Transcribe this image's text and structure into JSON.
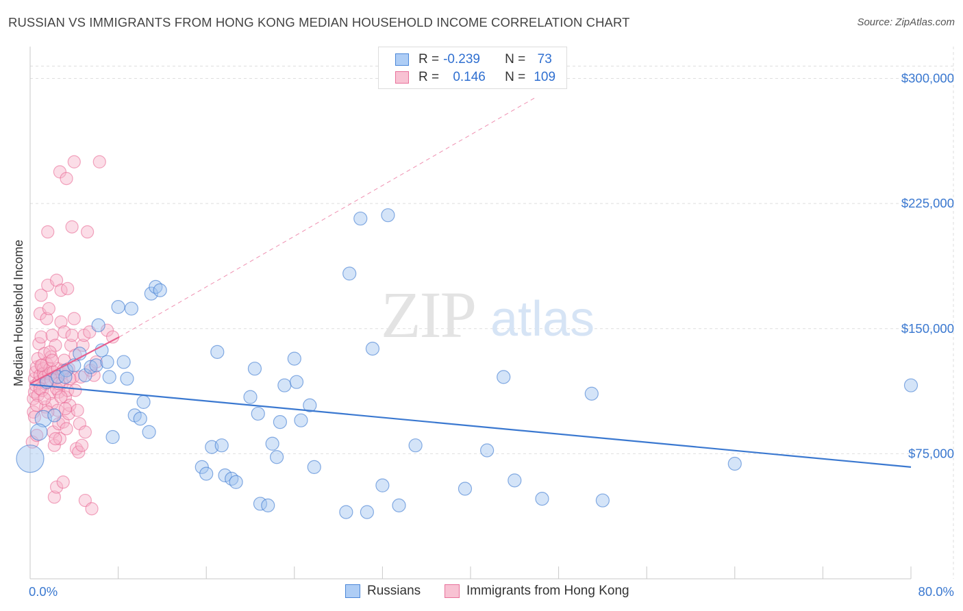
{
  "title": "RUSSIAN VS IMMIGRANTS FROM HONG KONG MEDIAN HOUSEHOLD INCOME CORRELATION CHART",
  "source": "Source: ZipAtlas.com",
  "watermark": {
    "zip": "ZIP",
    "atlas": "atlas"
  },
  "legend": {
    "rows": [
      {
        "r_label": "R =",
        "r_value": "-0.239",
        "n_label": "N =",
        "n_value": "73",
        "color": "#4a86d8",
        "fill": "#aecdf5"
      },
      {
        "r_label": "R =",
        "r_value": "0.146",
        "n_label": "N =",
        "n_value": "109",
        "color": "#e8709a",
        "fill": "#f8c2d3"
      }
    ]
  },
  "bottom_legend": [
    {
      "label": "Russians",
      "color": "#4a86d8",
      "fill": "#aecdf5"
    },
    {
      "label": "Immigrants from Hong Kong",
      "color": "#e8709a",
      "fill": "#f8c2d3"
    }
  ],
  "colors": {
    "blue": "#3a78d0",
    "blue_fill": "rgba(160,196,240,0.45)",
    "pink": "#e8608e",
    "pink_fill": "rgba(246,180,202,0.45)",
    "grid": "#dedede",
    "tick_label": "#3a78d0"
  },
  "chart_data": {
    "type": "scatter",
    "title": "RUSSIAN VS IMMIGRANTS FROM HONG KONG MEDIAN HOUSEHOLD INCOME CORRELATION CHART",
    "xlabel": "",
    "ylabel": "Median Household Income",
    "xlim": [
      0,
      80
    ],
    "ylim": [
      0,
      315000
    ],
    "x_tick_labels": [
      "0.0%",
      "80.0%"
    ],
    "y_ticks": [
      {
        "value": 75000,
        "label": "$75,000"
      },
      {
        "value": 150000,
        "label": "$150,000"
      },
      {
        "value": 225000,
        "label": "$225,000"
      },
      {
        "value": 300000,
        "label": "$300,000"
      }
    ],
    "grid": true,
    "series": [
      {
        "name": "Russians",
        "color": "blue",
        "trend": {
          "x": [
            0,
            80
          ],
          "y": [
            116500,
            67000
          ],
          "style": "solid"
        },
        "points": [
          [
            0.0,
            72000,
            3
          ],
          [
            1.2,
            96000,
            2
          ],
          [
            0.8,
            88000,
            2
          ],
          [
            1.5,
            118000,
            1
          ],
          [
            2.2,
            98000,
            1
          ],
          [
            2.5,
            121000,
            1
          ],
          [
            3.3,
            125000,
            1
          ],
          [
            3.2,
            121000,
            1
          ],
          [
            4.0,
            128000,
            1
          ],
          [
            4.5,
            135000,
            1
          ],
          [
            5.0,
            122000,
            1
          ],
          [
            5.5,
            127000,
            1
          ],
          [
            6.0,
            128000,
            1
          ],
          [
            6.2,
            152000,
            1
          ],
          [
            6.5,
            137000,
            1
          ],
          [
            7.0,
            130000,
            1
          ],
          [
            7.2,
            121000,
            1
          ],
          [
            7.5,
            85000,
            1
          ],
          [
            8.0,
            163000,
            1
          ],
          [
            8.5,
            130000,
            1
          ],
          [
            8.8,
            120000,
            1
          ],
          [
            9.2,
            162000,
            1
          ],
          [
            9.5,
            98000,
            1
          ],
          [
            10.0,
            96000,
            1
          ],
          [
            10.3,
            106000,
            1
          ],
          [
            10.8,
            88000,
            1
          ],
          [
            11.0,
            171000,
            1
          ],
          [
            11.4,
            175000,
            1
          ],
          [
            11.8,
            173000,
            1
          ],
          [
            15.6,
            67000,
            1
          ],
          [
            16.0,
            63000,
            1
          ],
          [
            16.5,
            79000,
            1
          ],
          [
            17.0,
            136000,
            1
          ],
          [
            17.4,
            80000,
            1
          ],
          [
            17.7,
            62000,
            1
          ],
          [
            18.3,
            60000,
            1
          ],
          [
            18.7,
            58000,
            1
          ],
          [
            20.0,
            109000,
            1
          ],
          [
            20.4,
            126000,
            1
          ],
          [
            20.7,
            99000,
            1
          ],
          [
            20.9,
            45000,
            1
          ],
          [
            21.6,
            44000,
            1
          ],
          [
            22.0,
            81000,
            1
          ],
          [
            22.4,
            73000,
            1
          ],
          [
            22.7,
            94000,
            1
          ],
          [
            23.1,
            116000,
            1
          ],
          [
            24.0,
            132000,
            1
          ],
          [
            24.2,
            118000,
            1
          ],
          [
            24.6,
            95000,
            1
          ],
          [
            25.4,
            104000,
            1
          ],
          [
            25.8,
            67000,
            1
          ],
          [
            28.7,
            40000,
            1
          ],
          [
            29.0,
            183000,
            1
          ],
          [
            30.0,
            216000,
            1
          ],
          [
            30.6,
            40000,
            1
          ],
          [
            31.1,
            138000,
            1
          ],
          [
            32.0,
            56000,
            1
          ],
          [
            32.5,
            218000,
            1
          ],
          [
            33.5,
            44000,
            1
          ],
          [
            35.0,
            80000,
            1
          ],
          [
            39.5,
            54000,
            1
          ],
          [
            41.5,
            77000,
            1
          ],
          [
            43.0,
            121000,
            1
          ],
          [
            44.0,
            59000,
            1
          ],
          [
            46.5,
            48000,
            1
          ],
          [
            51.0,
            111000,
            1
          ],
          [
            52.0,
            47000,
            1
          ],
          [
            64.0,
            69000,
            1
          ],
          [
            80.0,
            116000,
            1
          ]
        ]
      },
      {
        "name": "Immigrants from Hong Kong",
        "color": "pink",
        "trend": {
          "x": [
            0,
            8.1
          ],
          "y": [
            117000,
            145000
          ],
          "style": "solid"
        },
        "trend_extension": {
          "x": [
            8.1,
            46.0
          ],
          "y": [
            145000,
            289000
          ],
          "style": "dashed"
        },
        "points": [
          [
            0.2,
            82000
          ],
          [
            0.3,
            100000
          ],
          [
            0.3,
            108000
          ],
          [
            0.4,
            112000
          ],
          [
            0.4,
            120000
          ],
          [
            0.5,
            116000
          ],
          [
            0.5,
            124000
          ],
          [
            0.6,
            127000
          ],
          [
            0.6,
            86000
          ],
          [
            0.7,
            110000
          ],
          [
            0.7,
            132000
          ],
          [
            0.8,
            141000
          ],
          [
            0.8,
            118000
          ],
          [
            0.9,
            122000
          ],
          [
            0.9,
            159000
          ],
          [
            1.0,
            170000
          ],
          [
            1.0,
            145000
          ],
          [
            1.1,
            128000
          ],
          [
            1.1,
            113000
          ],
          [
            1.2,
            126000
          ],
          [
            1.2,
            123000
          ],
          [
            1.3,
            121000
          ],
          [
            1.3,
            135000
          ],
          [
            1.4,
            103000
          ],
          [
            1.4,
            117000
          ],
          [
            1.5,
            156000
          ],
          [
            1.5,
            129000
          ],
          [
            1.6,
            208000
          ],
          [
            1.6,
            176000
          ],
          [
            1.7,
            162000
          ],
          [
            1.7,
            123000
          ],
          [
            1.8,
            111000
          ],
          [
            1.8,
            126000
          ],
          [
            1.9,
            133000
          ],
          [
            1.9,
            119000
          ],
          [
            2.0,
            105000
          ],
          [
            2.0,
            146000
          ],
          [
            2.1,
            124000
          ],
          [
            2.1,
            88000
          ],
          [
            2.2,
            80000
          ],
          [
            2.2,
            49000
          ],
          [
            2.3,
            140000
          ],
          [
            2.3,
            120000
          ],
          [
            2.4,
            179000
          ],
          [
            2.4,
            55000
          ],
          [
            2.5,
            101000
          ],
          [
            2.5,
            126000
          ],
          [
            2.6,
            93000
          ],
          [
            2.6,
            112000
          ],
          [
            2.7,
            84000
          ],
          [
            2.7,
            244000
          ],
          [
            2.8,
            173000
          ],
          [
            2.8,
            154000
          ],
          [
            2.9,
            123000
          ],
          [
            2.9,
            117000
          ],
          [
            3.0,
            58000
          ],
          [
            3.0,
            94000
          ],
          [
            3.1,
            148000
          ],
          [
            3.1,
            131000
          ],
          [
            3.2,
            109000
          ],
          [
            3.3,
            240000
          ],
          [
            3.3,
            90000
          ],
          [
            3.4,
            174000
          ],
          [
            3.4,
            113000
          ],
          [
            3.5,
            99000
          ],
          [
            3.5,
            126000
          ],
          [
            3.6,
            104000
          ],
          [
            3.7,
            140000
          ],
          [
            3.8,
            211000
          ],
          [
            3.8,
            146000
          ],
          [
            3.9,
            121000
          ],
          [
            4.0,
            250000
          ],
          [
            4.0,
            156000
          ],
          [
            4.1,
            113000
          ],
          [
            4.2,
            78000
          ],
          [
            4.3,
            101000
          ],
          [
            4.4,
            76000
          ],
          [
            4.5,
            93000
          ],
          [
            4.6,
            121000
          ],
          [
            4.7,
            80000
          ],
          [
            4.8,
            140000
          ],
          [
            4.9,
            146000
          ],
          [
            5.0,
            47000
          ],
          [
            5.0,
            88000
          ],
          [
            5.2,
            208000
          ],
          [
            5.4,
            148000
          ],
          [
            5.5,
            125000
          ],
          [
            5.6,
            42000
          ],
          [
            5.8,
            122000
          ],
          [
            6.0,
            130000
          ],
          [
            6.3,
            250000
          ],
          [
            7.0,
            149000
          ],
          [
            7.5,
            145000
          ],
          [
            0.4,
            97000
          ],
          [
            0.6,
            104000
          ],
          [
            0.9,
            114000
          ],
          [
            1.0,
            128000
          ],
          [
            1.3,
            108000
          ],
          [
            1.6,
            100000
          ],
          [
            1.8,
            136000
          ],
          [
            2.0,
            131000
          ],
          [
            2.4,
            114000
          ],
          [
            2.6,
            117000
          ],
          [
            2.8,
            109000
          ],
          [
            3.0,
            125000
          ],
          [
            3.2,
            102000
          ],
          [
            3.6,
            120000
          ],
          [
            4.1,
            134000
          ],
          [
            2.3,
            84000
          ]
        ]
      }
    ]
  }
}
